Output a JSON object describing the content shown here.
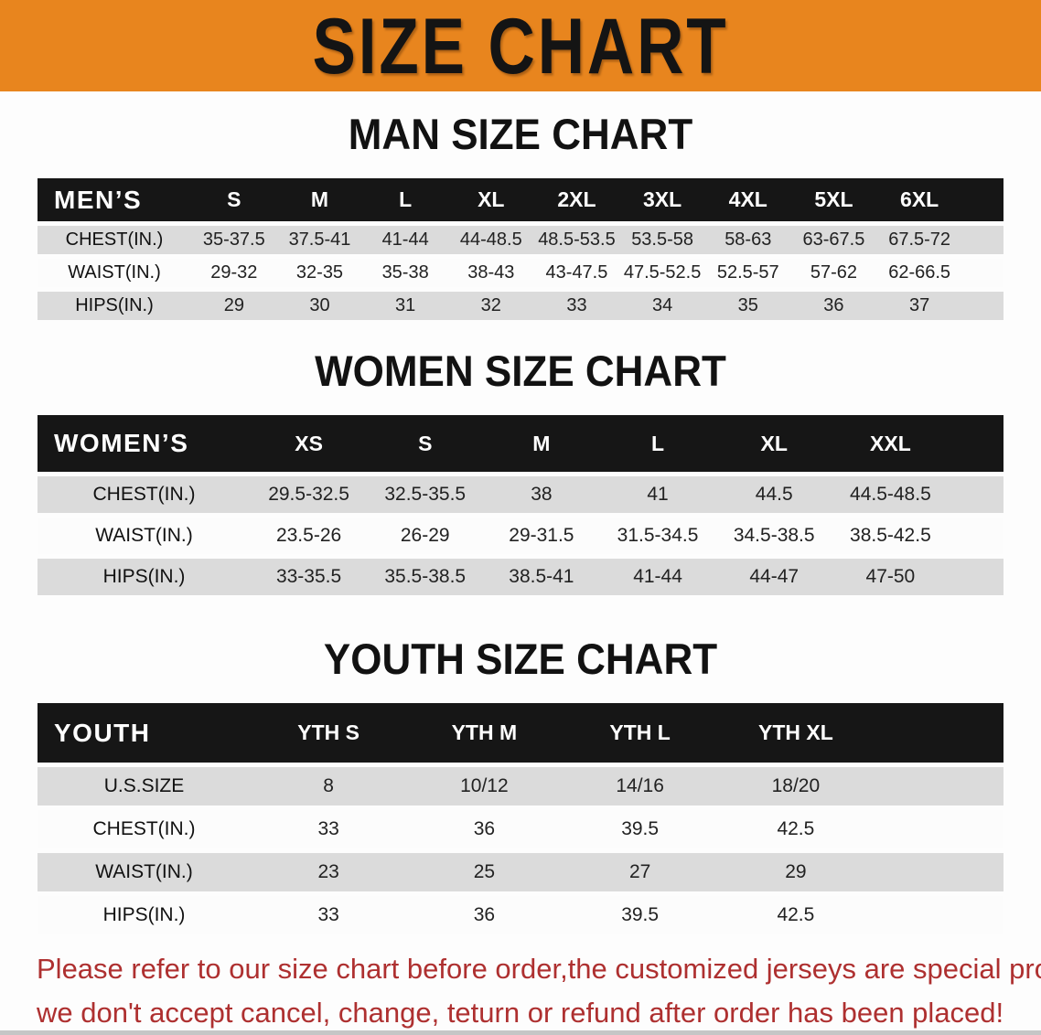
{
  "page": {
    "banner_title": "SIZE CHART",
    "colors": {
      "banner": "#E8851E",
      "table_header_bg": "#161616",
      "row_shade": "#DBDBDB",
      "note_text": "#AE3030"
    },
    "note_lines": [
      "Please refer to our size chart before order,the customized jerseys are special products,",
      "we don't accept cancel, change, teturn or refund after order has been placed!"
    ]
  },
  "sections": {
    "men": {
      "title": "MAN SIZE CHART",
      "table": {
        "header": [
          "MEN’S",
          "S",
          "M",
          "L",
          "XL",
          "2XL",
          "3XL",
          "4XL",
          "5XL",
          "6XL"
        ],
        "rows": [
          {
            "label": "CHEST(IN.)",
            "values": [
              "35-37.5",
              "37.5-41",
              "41-44",
              "44-48.5",
              "48.5-53.5",
              "53.5-58",
              "58-63",
              "63-67.5",
              "67.5-72"
            ]
          },
          {
            "label": "WAIST(IN.)",
            "values": [
              "29-32",
              "32-35",
              "35-38",
              "38-43",
              "43-47.5",
              "47.5-52.5",
              "52.5-57",
              "57-62",
              "62-66.5"
            ]
          },
          {
            "label": "HIPS(IN.)",
            "values": [
              "29",
              "30",
              "31",
              "32",
              "33",
              "34",
              "35",
              "36",
              "37"
            ]
          }
        ]
      }
    },
    "women": {
      "title": "WOMEN SIZE CHART",
      "table": {
        "header": [
          "WOMEN’S",
          "XS",
          "S",
          "M",
          "L",
          "XL",
          "XXL"
        ],
        "rows": [
          {
            "label": "CHEST(IN.)",
            "values": [
              "29.5-32.5",
              "32.5-35.5",
              "38",
              "41",
              "44.5",
              "44.5-48.5"
            ]
          },
          {
            "label": "WAIST(IN.)",
            "values": [
              "23.5-26",
              "26-29",
              "29-31.5",
              "31.5-34.5",
              "34.5-38.5",
              "38.5-42.5"
            ]
          },
          {
            "label": "HIPS(IN.)",
            "values": [
              "33-35.5",
              "35.5-38.5",
              "38.5-41",
              "41-44",
              "44-47",
              "47-50"
            ]
          }
        ]
      }
    },
    "youth": {
      "title": "YOUTH SIZE CHART",
      "table": {
        "header": [
          "YOUTH",
          "YTH S",
          "YTH M",
          "YTH L",
          "YTH XL"
        ],
        "rows": [
          {
            "label": "U.S.SIZE",
            "values": [
              "8",
              "10/12",
              "14/16",
              "18/20"
            ]
          },
          {
            "label": "CHEST(IN.)",
            "values": [
              "33",
              "36",
              "39.5",
              "42.5"
            ]
          },
          {
            "label": "WAIST(IN.)",
            "values": [
              "23",
              "25",
              "27",
              "29"
            ]
          },
          {
            "label": "HIPS(IN.)",
            "values": [
              "33",
              "36",
              "39.5",
              "42.5"
            ]
          }
        ]
      }
    }
  }
}
